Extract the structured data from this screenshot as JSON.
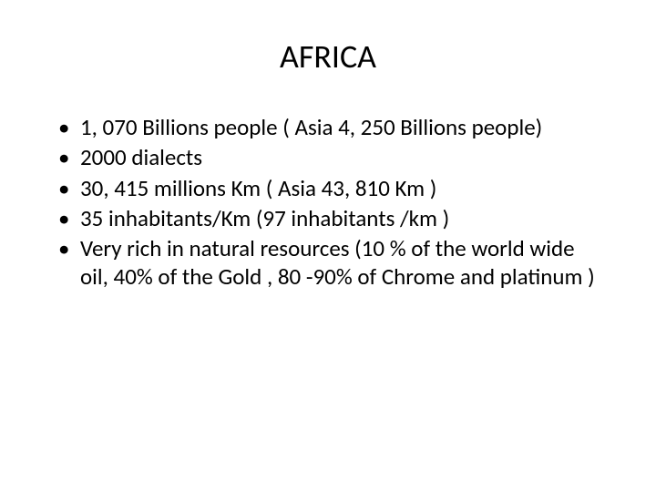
{
  "slide": {
    "title": "AFRICA",
    "title_fontsize": 36,
    "body_fontsize": 25,
    "background_color": "#ffffff",
    "text_color": "#000000",
    "bullets": [
      "1, 070 Billions people ( Asia 4, 250 Billions people)",
      "2000 dialects",
      "30, 415 millions Km ( Asia 43, 810 Km )",
      "35 inhabitants/Km (97 inhabitants /km )",
      "Very rich in natural resources (10 % of the world wide oil, 40% of the Gold , 80 -90% of Chrome and platinum )"
    ]
  }
}
